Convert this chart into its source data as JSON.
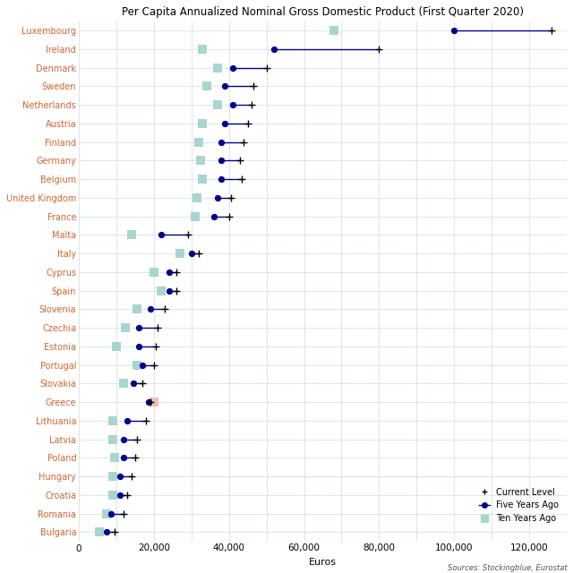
{
  "title": "Per Capita Annualized Nominal Gross Domestic Product (First Quarter 2020)",
  "xlabel": "Euros",
  "source_text": "Sources: Stockingblue, Eurostat",
  "countries": [
    "Luxembourg",
    "Ireland",
    "Denmark",
    "Sweden",
    "Netherlands",
    "Austria",
    "Finland",
    "Germany",
    "Belgium",
    "United Kingdom",
    "France",
    "Malta",
    "Italy",
    "Cyprus",
    "Spain",
    "Slovenia",
    "Czechia",
    "Estonia",
    "Portugal",
    "Slovakia",
    "Greece",
    "Lithuania",
    "Latvia",
    "Poland",
    "Hungary",
    "Croatia",
    "Romania",
    "Bulgaria"
  ],
  "current": [
    126000,
    80000,
    50000,
    46500,
    46000,
    45000,
    44000,
    43000,
    43500,
    40500,
    40000,
    29000,
    32000,
    26000,
    26000,
    23000,
    21000,
    20500,
    20000,
    17000,
    19000,
    18000,
    15500,
    15000,
    14000,
    13000,
    12000,
    9500
  ],
  "five_years_ago": [
    100000,
    52000,
    41000,
    39000,
    41000,
    39000,
    38000,
    38000,
    38000,
    37000,
    36000,
    22000,
    30000,
    24000,
    24000,
    19000,
    16000,
    16000,
    17000,
    14500,
    18500,
    13000,
    12000,
    12000,
    11000,
    11000,
    8500,
    7500
  ],
  "ten_years_ago": [
    68000,
    33000,
    37000,
    34000,
    37000,
    33000,
    32000,
    32500,
    33000,
    31500,
    31000,
    14000,
    27000,
    20000,
    22000,
    15500,
    12500,
    10000,
    15500,
    12000,
    20000,
    9000,
    9000,
    9500,
    9000,
    9000,
    7500,
    5500
  ],
  "xlim": [
    0,
    130000
  ],
  "xticks": [
    0,
    20000,
    40000,
    60000,
    80000,
    100000,
    120000
  ],
  "xtick_labels": [
    "0",
    "20,000",
    "40,000",
    "60,000",
    "80,000",
    "100,000",
    "120,000"
  ],
  "current_color": "#00008B",
  "line_color": "#00008B",
  "ten_years_color": "#A8D5D0",
  "greece_ten_color": "#F4BBBB",
  "bg_color": "#FFFFFF",
  "plot_bg_color": "#FFFFFF",
  "grid_color": "#CCDDDD",
  "label_color": "#CC6633",
  "title_fontsize": 8.5,
  "label_fontsize": 7,
  "tick_fontsize": 7.5
}
